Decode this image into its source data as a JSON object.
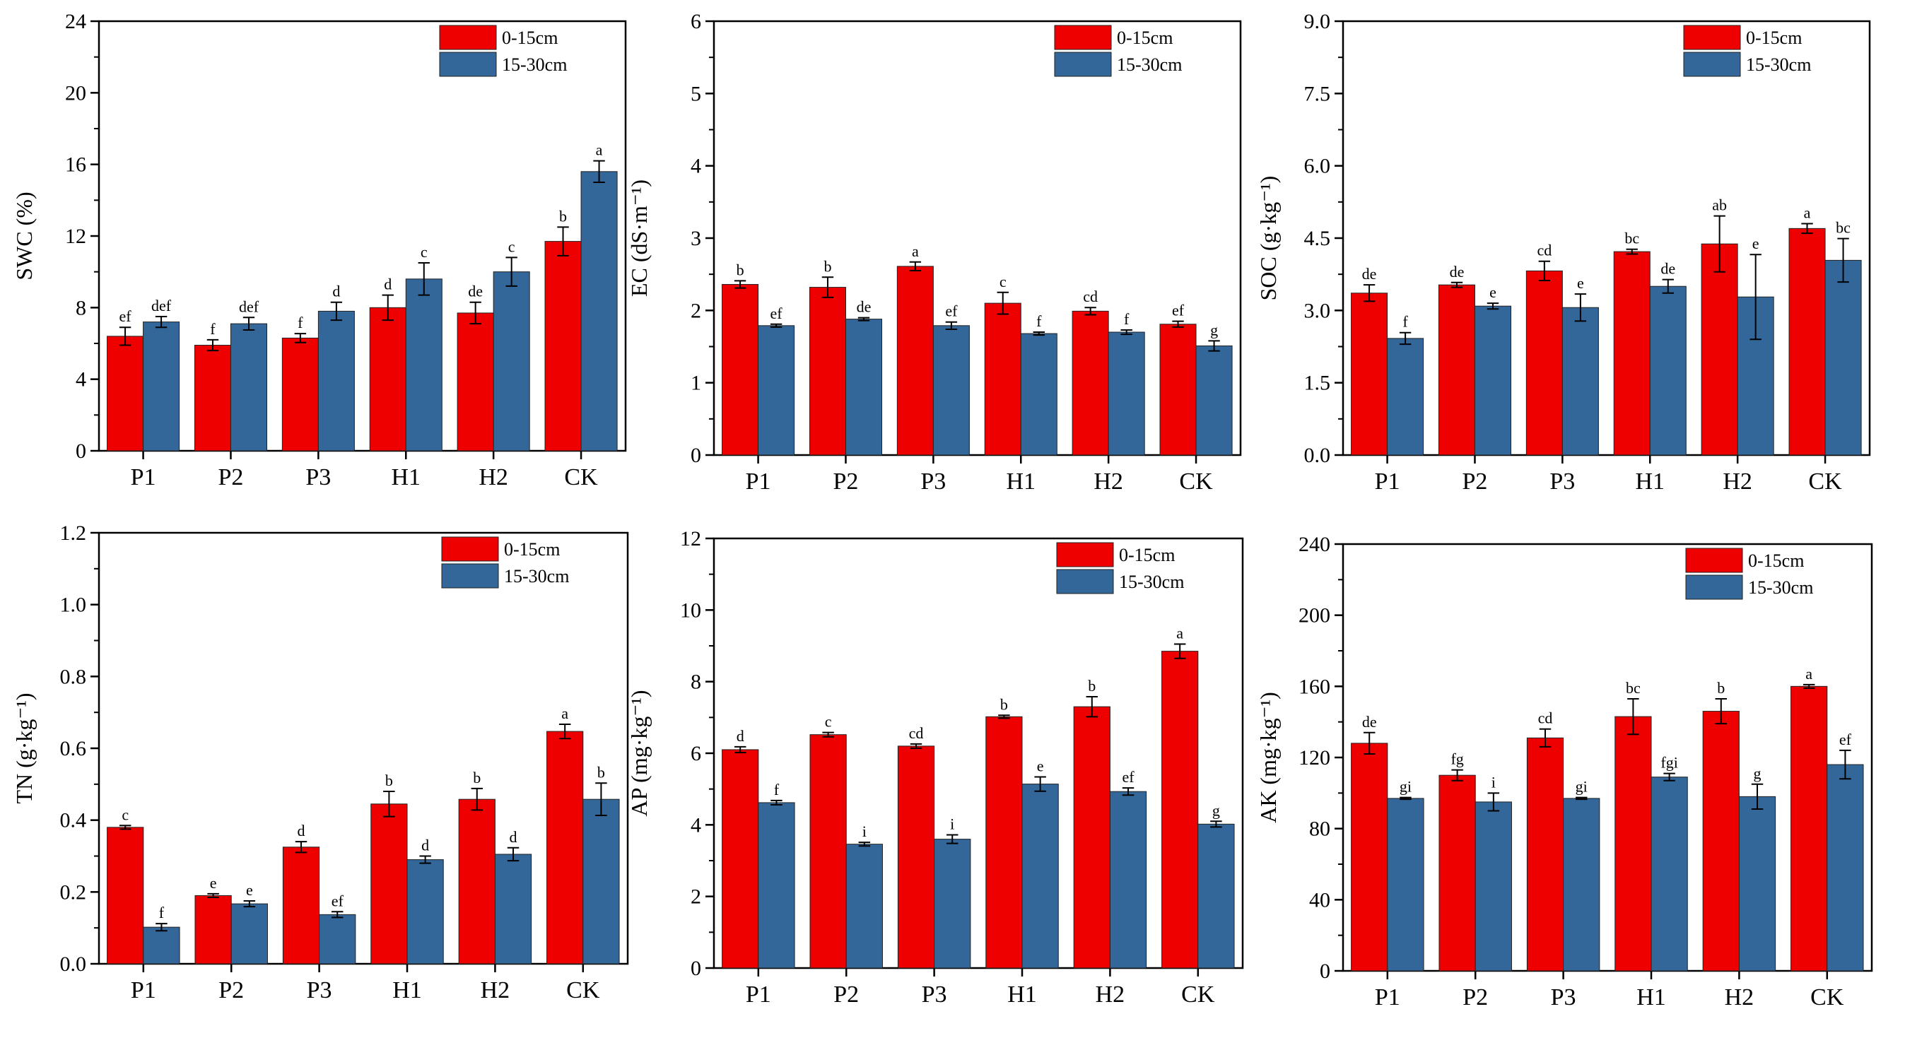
{
  "series_colors": {
    "0-15cm": "#ee0000",
    "15-30cm": "#336699"
  },
  "chart_data": [
    {
      "type": "bar",
      "categories": [
        "P1",
        "P2",
        "P3",
        "H1",
        "H2",
        "CK"
      ],
      "ylabel": "SWC (%)",
      "ylim": [
        0,
        24
      ],
      "yticks": [
        "0",
        "4",
        "8",
        "12",
        "16",
        "20",
        "24"
      ],
      "legend": "top-right",
      "series": [
        {
          "name": "0-15cm",
          "values": [
            6.4,
            5.9,
            6.3,
            8.0,
            7.7,
            11.7
          ],
          "errors": [
            0.5,
            0.3,
            0.25,
            0.7,
            0.6,
            0.8
          ],
          "letters": [
            "ef",
            "f",
            "f",
            "d",
            "de",
            "b"
          ]
        },
        {
          "name": "15-30cm",
          "values": [
            7.2,
            7.1,
            7.8,
            9.6,
            10.0,
            15.6
          ],
          "errors": [
            0.3,
            0.35,
            0.5,
            0.9,
            0.8,
            0.6
          ],
          "letters": [
            "def",
            "def",
            "d",
            "c",
            "c",
            "a"
          ]
        }
      ]
    },
    {
      "type": "bar",
      "categories": [
        "P1",
        "P2",
        "P3",
        "H1",
        "H2",
        "CK"
      ],
      "ylabel": "EC (dS·m⁻¹)",
      "ylim": [
        0,
        6
      ],
      "yticks": [
        "0",
        "1",
        "2",
        "3",
        "4",
        "5",
        "6"
      ],
      "legend": "top-right",
      "series": [
        {
          "name": "0-15cm",
          "values": [
            2.36,
            2.32,
            2.61,
            2.1,
            1.99,
            1.81
          ],
          "errors": [
            0.05,
            0.14,
            0.06,
            0.15,
            0.05,
            0.04
          ],
          "letters": [
            "b",
            "b",
            "a",
            "c",
            "cd",
            "ef"
          ]
        },
        {
          "name": "15-30cm",
          "values": [
            1.79,
            1.88,
            1.79,
            1.68,
            1.7,
            1.51
          ],
          "errors": [
            0.02,
            0.02,
            0.05,
            0.02,
            0.03,
            0.07
          ],
          "letters": [
            "ef",
            "de",
            "ef",
            "f",
            "f",
            "g"
          ]
        }
      ]
    },
    {
      "type": "bar",
      "categories": [
        "P1",
        "P2",
        "P3",
        "H1",
        "H2",
        "CK"
      ],
      "ylabel": "SOC (g·kg⁻¹)",
      "ylim": [
        0,
        9
      ],
      "yticks": [
        "0.0",
        "1.5",
        "3.0",
        "4.5",
        "6.0",
        "7.5",
        "9.0"
      ],
      "legend": "top-right",
      "series": [
        {
          "name": "0-15cm",
          "values": [
            3.36,
            3.53,
            3.82,
            4.22,
            4.38,
            4.7
          ],
          "errors": [
            0.17,
            0.05,
            0.2,
            0.05,
            0.58,
            0.1
          ],
          "letters": [
            "de",
            "de",
            "cd",
            "bc",
            "ab",
            "a"
          ]
        },
        {
          "name": "15-30cm",
          "values": [
            2.42,
            3.09,
            3.06,
            3.5,
            3.28,
            4.04
          ],
          "errors": [
            0.12,
            0.06,
            0.28,
            0.14,
            0.88,
            0.45
          ],
          "letters": [
            "f",
            "e",
            "e",
            "de",
            "e",
            "bc"
          ]
        }
      ]
    },
    {
      "type": "bar",
      "categories": [
        "P1",
        "P2",
        "P3",
        "H1",
        "H2",
        "CK"
      ],
      "ylabel": "TN (g·kg⁻¹)",
      "ylim": [
        0,
        1.2
      ],
      "yticks": [
        "0.0",
        "0.2",
        "0.4",
        "0.6",
        "0.8",
        "1.0",
        "1.2"
      ],
      "legend": "top-right",
      "series": [
        {
          "name": "0-15cm",
          "values": [
            0.38,
            0.19,
            0.325,
            0.445,
            0.458,
            0.647
          ],
          "errors": [
            0.005,
            0.005,
            0.015,
            0.035,
            0.03,
            0.02
          ],
          "letters": [
            "c",
            "e",
            "d",
            "b",
            "b",
            "a"
          ]
        },
        {
          "name": "15-30cm",
          "values": [
            0.102,
            0.167,
            0.137,
            0.29,
            0.305,
            0.458
          ],
          "errors": [
            0.01,
            0.008,
            0.008,
            0.01,
            0.018,
            0.045
          ],
          "letters": [
            "f",
            "e",
            "ef",
            "d",
            "d",
            "b"
          ]
        }
      ]
    },
    {
      "type": "bar",
      "categories": [
        "P1",
        "P2",
        "P3",
        "H1",
        "H2",
        "CK"
      ],
      "ylabel": "AP (mg·kg⁻¹)",
      "ylim": [
        0,
        12
      ],
      "yticks": [
        "0",
        "2",
        "4",
        "6",
        "8",
        "10",
        "12"
      ],
      "legend": "top-right",
      "series": [
        {
          "name": "0-15cm",
          "values": [
            6.1,
            6.52,
            6.2,
            7.02,
            7.3,
            8.85
          ],
          "errors": [
            0.08,
            0.06,
            0.06,
            0.04,
            0.28,
            0.2
          ],
          "letters": [
            "d",
            "c",
            "cd",
            "b",
            "b",
            "a"
          ]
        },
        {
          "name": "15-30cm",
          "values": [
            4.62,
            3.46,
            3.6,
            5.14,
            4.93,
            4.02
          ],
          "errors": [
            0.06,
            0.05,
            0.12,
            0.2,
            0.1,
            0.08
          ],
          "letters": [
            "f",
            "i",
            "i",
            "e",
            "ef",
            "g"
          ]
        }
      ]
    },
    {
      "type": "bar",
      "categories": [
        "P1",
        "P2",
        "P3",
        "H1",
        "H2",
        "CK"
      ],
      "ylabel": "AK (mg·kg⁻¹)",
      "ylim": [
        0,
        240
      ],
      "yticks": [
        "0",
        "40",
        "80",
        "120",
        "160",
        "200",
        "240"
      ],
      "legend": "top-right",
      "series": [
        {
          "name": "0-15cm",
          "values": [
            128,
            110,
            131,
            143,
            146,
            160
          ],
          "errors": [
            6,
            3,
            5,
            10,
            7,
            1
          ],
          "letters": [
            "de",
            "fg",
            "cd",
            "bc",
            "b",
            "a"
          ]
        },
        {
          "name": "15-30cm",
          "values": [
            97,
            95,
            97,
            109,
            98,
            116
          ],
          "errors": [
            0.5,
            5,
            0.5,
            2,
            7,
            8
          ],
          "letters": [
            "gi",
            "i",
            "gi",
            "fgi",
            "g",
            "ef"
          ]
        }
      ]
    }
  ]
}
